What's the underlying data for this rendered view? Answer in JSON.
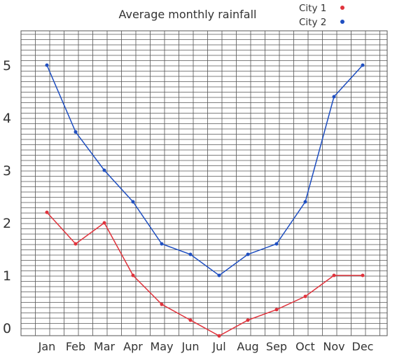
{
  "chart_data": {
    "type": "line",
    "title": "Average monthly rainfall",
    "categories": [
      "Jan",
      "Feb",
      "Mar",
      "Apr",
      "May",
      "Jun",
      "Jul",
      "Aug",
      "Sep",
      "Oct",
      "Nov",
      "Dec"
    ],
    "y_tick_labels": [
      "0",
      "1",
      "2",
      "3",
      "4",
      "5"
    ],
    "ylim": [
      -0.15,
      5.8
    ],
    "grid": true,
    "legend_position": "top-right",
    "series": [
      {
        "name": "City 1",
        "color": "#e0333c",
        "values": [
          2.2,
          1.6,
          2.0,
          1.0,
          0.45,
          0.15,
          -0.15,
          0.15,
          0.35,
          0.6,
          1.0,
          1.0
        ]
      },
      {
        "name": "City 2",
        "color": "#1f4fc1",
        "values": [
          5.0,
          3.73,
          3.0,
          2.4,
          1.6,
          1.4,
          1.0,
          1.4,
          1.6,
          2.4,
          4.4,
          5.0
        ]
      }
    ]
  }
}
